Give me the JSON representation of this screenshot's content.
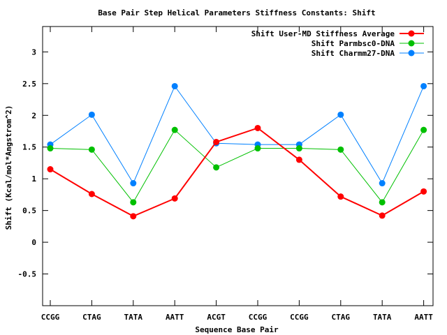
{
  "chart_data": {
    "type": "line",
    "title": "Base Pair Step Helical Parameters Stiffness Constants: Shift",
    "xlabel": "Sequence Base Pair",
    "ylabel": "Shift (Kcal/mol*Angstrom^2)",
    "categories": [
      "CCGG",
      "CTAG",
      "TATA",
      "AATT",
      "ACGT",
      "CCGG",
      "CCGG",
      "CTAG",
      "TATA",
      "AATT"
    ],
    "ylim": [
      -1.0,
      3.4
    ],
    "yticks": [
      -0.5,
      0,
      0.5,
      1,
      1.5,
      2,
      2.5,
      3
    ],
    "ytick_labels": [
      "-0.5",
      "0",
      "0.5",
      "1",
      "1.5",
      "2",
      "2.5",
      "3"
    ],
    "grid": false,
    "legend_position": "top-right",
    "series": [
      {
        "name": "Shift User-MD Stiffness Average",
        "color": "#ff0000",
        "values": [
          1.15,
          0.76,
          0.41,
          0.69,
          1.58,
          1.8,
          1.3,
          0.72,
          0.42,
          0.8
        ]
      },
      {
        "name": "Shift Parmbsc0-DNA",
        "color": "#00c000",
        "values": [
          1.48,
          1.46,
          0.63,
          1.77,
          1.18,
          1.48,
          1.48,
          1.46,
          0.63,
          1.77
        ]
      },
      {
        "name": "Shift Charmm27-DNA",
        "color": "#0080ff",
        "values": [
          1.54,
          2.01,
          0.93,
          2.46,
          1.56,
          1.54,
          1.54,
          2.01,
          0.93,
          2.46
        ]
      }
    ]
  }
}
